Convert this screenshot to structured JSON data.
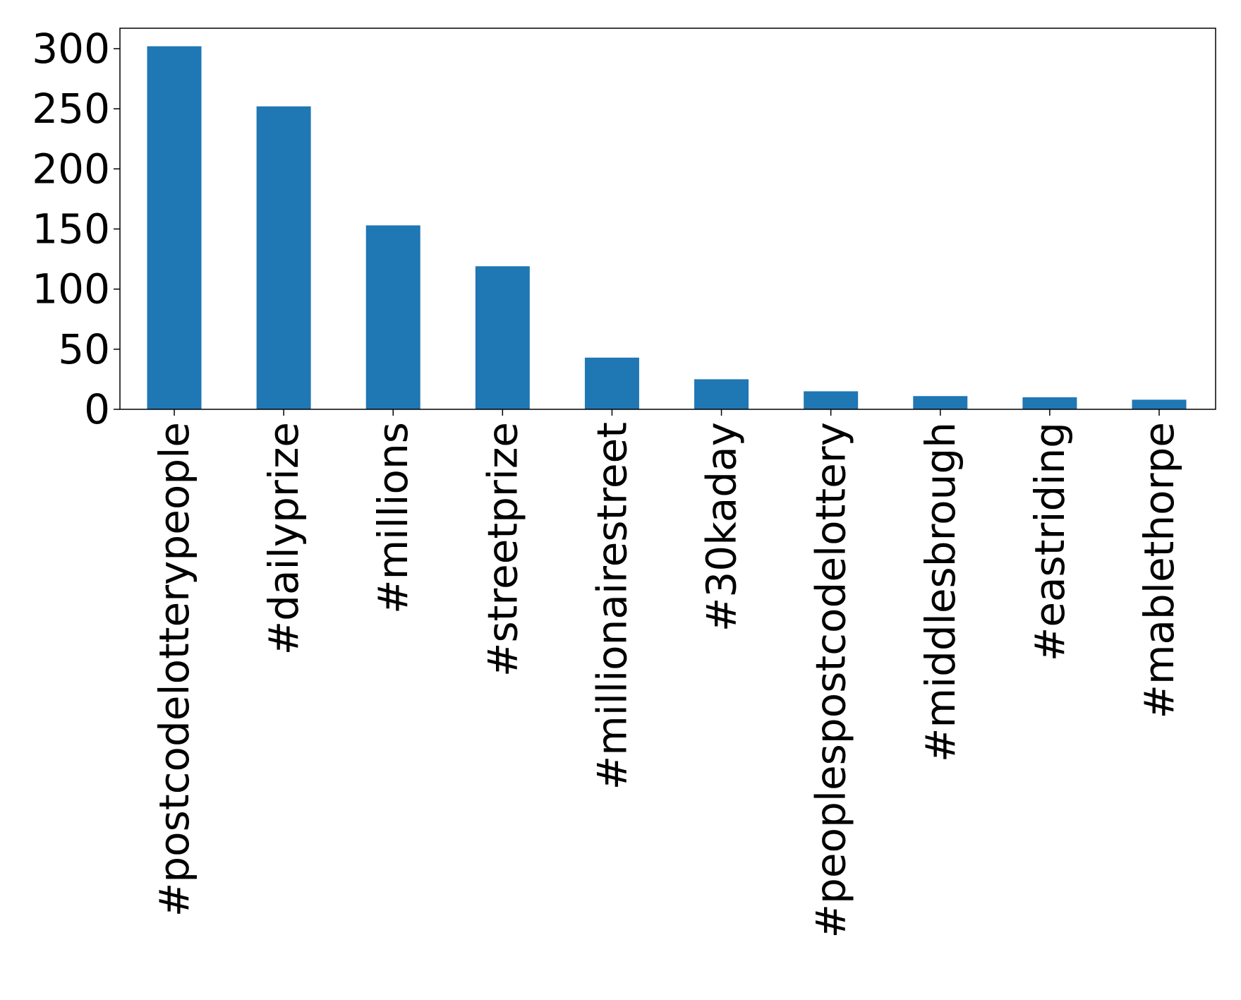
{
  "colors": {
    "bar": "#1f77b4",
    "axis": "#000000",
    "background": "#ffffff"
  },
  "chart_data": {
    "type": "bar",
    "title": "",
    "xlabel": "",
    "ylabel": "",
    "categories": [
      "#postcodelotterypeople",
      "#dailyprize",
      "#millions",
      "#streetprize",
      "#millionairestreet",
      "#30kaday",
      "#peoplespostcodelottery",
      "#middlesbrough",
      "#eastriding",
      "#mablethorpe"
    ],
    "values": [
      302,
      252,
      153,
      119,
      43,
      25,
      15,
      11,
      10,
      8
    ],
    "ylim": [
      0,
      317
    ],
    "yticks": [
      0,
      50,
      100,
      150,
      200,
      250,
      300
    ],
    "grid": false,
    "legend": "none"
  }
}
